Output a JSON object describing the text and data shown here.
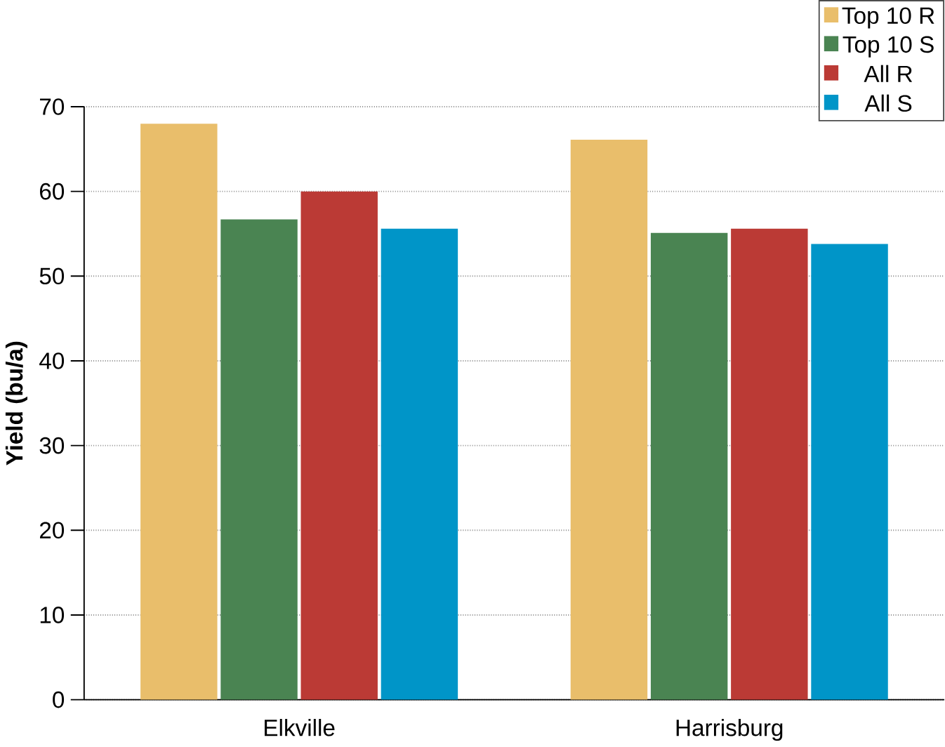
{
  "chart_data": {
    "type": "bar",
    "ylabel": "Yield (bu/a)",
    "categories": [
      "Elkville",
      "Harrisburg"
    ],
    "series": [
      {
        "name": "Top 10 R",
        "color": "#e9be6b",
        "values": [
          68.0,
          66.1
        ]
      },
      {
        "name": "Top 10 S",
        "color": "#4a8452",
        "values": [
          56.7,
          55.1
        ]
      },
      {
        "name": "All R",
        "color": "#bb3a35",
        "values": [
          60.0,
          55.6
        ]
      },
      {
        "name": "All S",
        "color": "#0095c8",
        "values": [
          55.6,
          53.8
        ]
      }
    ],
    "ylim": [
      0,
      70
    ],
    "yticks": [
      0,
      10,
      20,
      30,
      40,
      50,
      60,
      70
    ],
    "grid": "y",
    "legend": "top right"
  }
}
